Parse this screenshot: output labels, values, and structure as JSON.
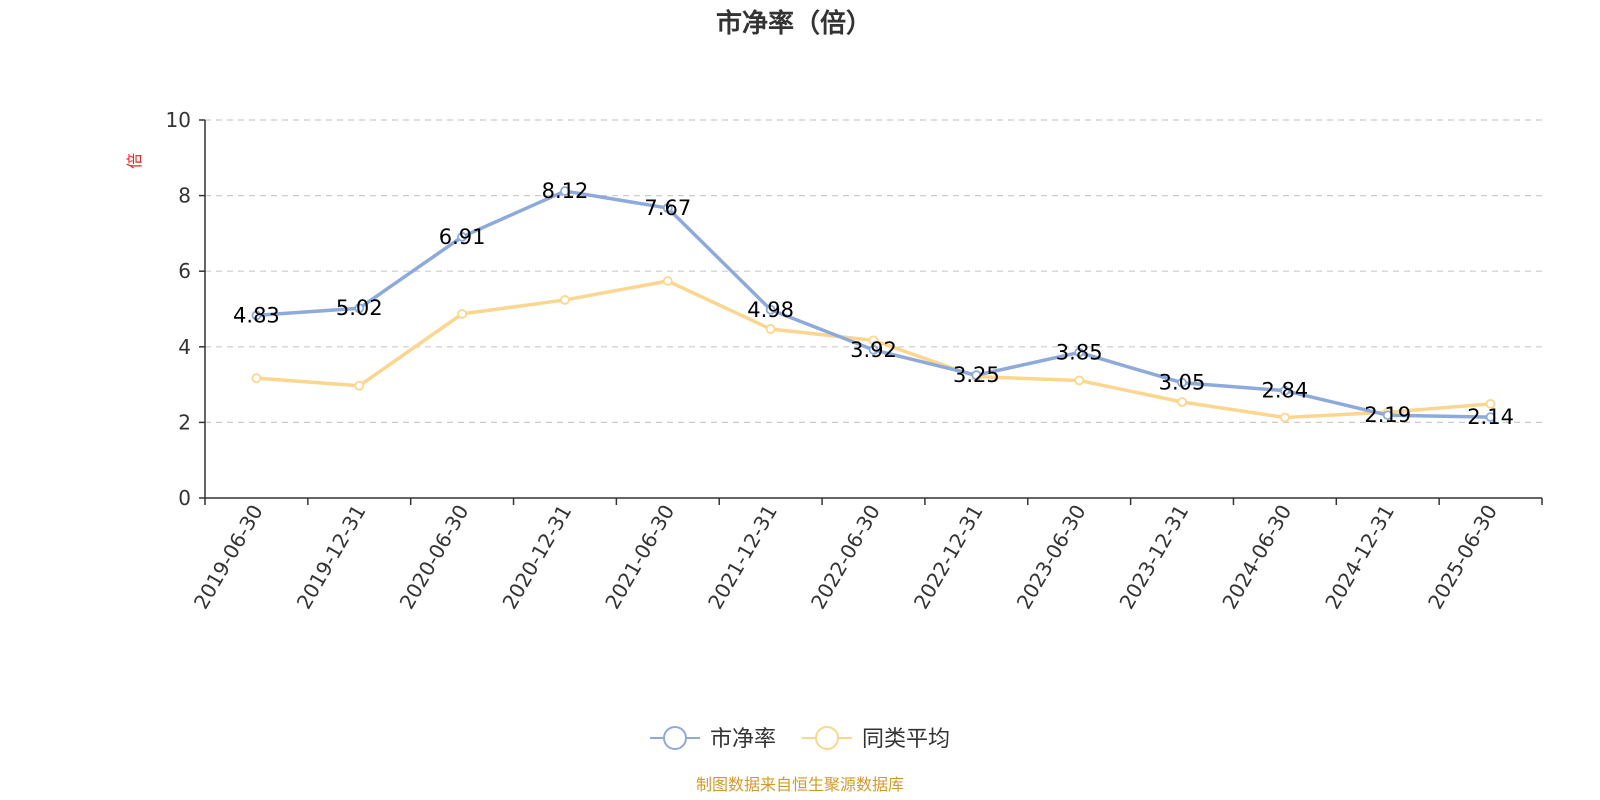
{
  "chart_data": {
    "type": "line",
    "title": "市净率（倍）",
    "ylabel": "倍",
    "ylim": [
      0,
      10
    ],
    "yticks": [
      0,
      2,
      4,
      6,
      8,
      10
    ],
    "grid": true,
    "legend_position": "bottom",
    "categories": [
      "2019-06-30",
      "2019-12-31",
      "2020-06-30",
      "2020-12-31",
      "2021-06-30",
      "2021-12-31",
      "2022-06-30",
      "2022-12-31",
      "2023-06-30",
      "2023-12-31",
      "2024-06-30",
      "2024-12-31",
      "2025-06-30"
    ],
    "series": [
      {
        "name": "市净率",
        "color": "#8eaadb",
        "show_labels": true,
        "values": [
          4.83,
          5.02,
          6.91,
          8.12,
          7.67,
          4.98,
          3.92,
          3.25,
          3.85,
          3.05,
          2.84,
          2.19,
          2.14
        ],
        "labels": [
          "4.83",
          "5.02",
          "6.91",
          "8.12",
          "7.67",
          "4.98",
          "3.92",
          "3.25",
          "3.85",
          "3.05",
          "2.84",
          "2.19",
          "2.14"
        ]
      },
      {
        "name": "同类平均",
        "color": "#fbd68f",
        "show_labels": false,
        "values": [
          3.17,
          2.97,
          4.87,
          5.24,
          5.74,
          4.47,
          4.17,
          3.21,
          3.11,
          2.54,
          2.13,
          2.27,
          2.49
        ]
      }
    ]
  },
  "source_text": "制图数据来自恒生聚源数据库",
  "colors": {
    "axis": "#333333",
    "grid": "#cccccc",
    "unit": "#e8231f",
    "source": "#d19a2d"
  }
}
